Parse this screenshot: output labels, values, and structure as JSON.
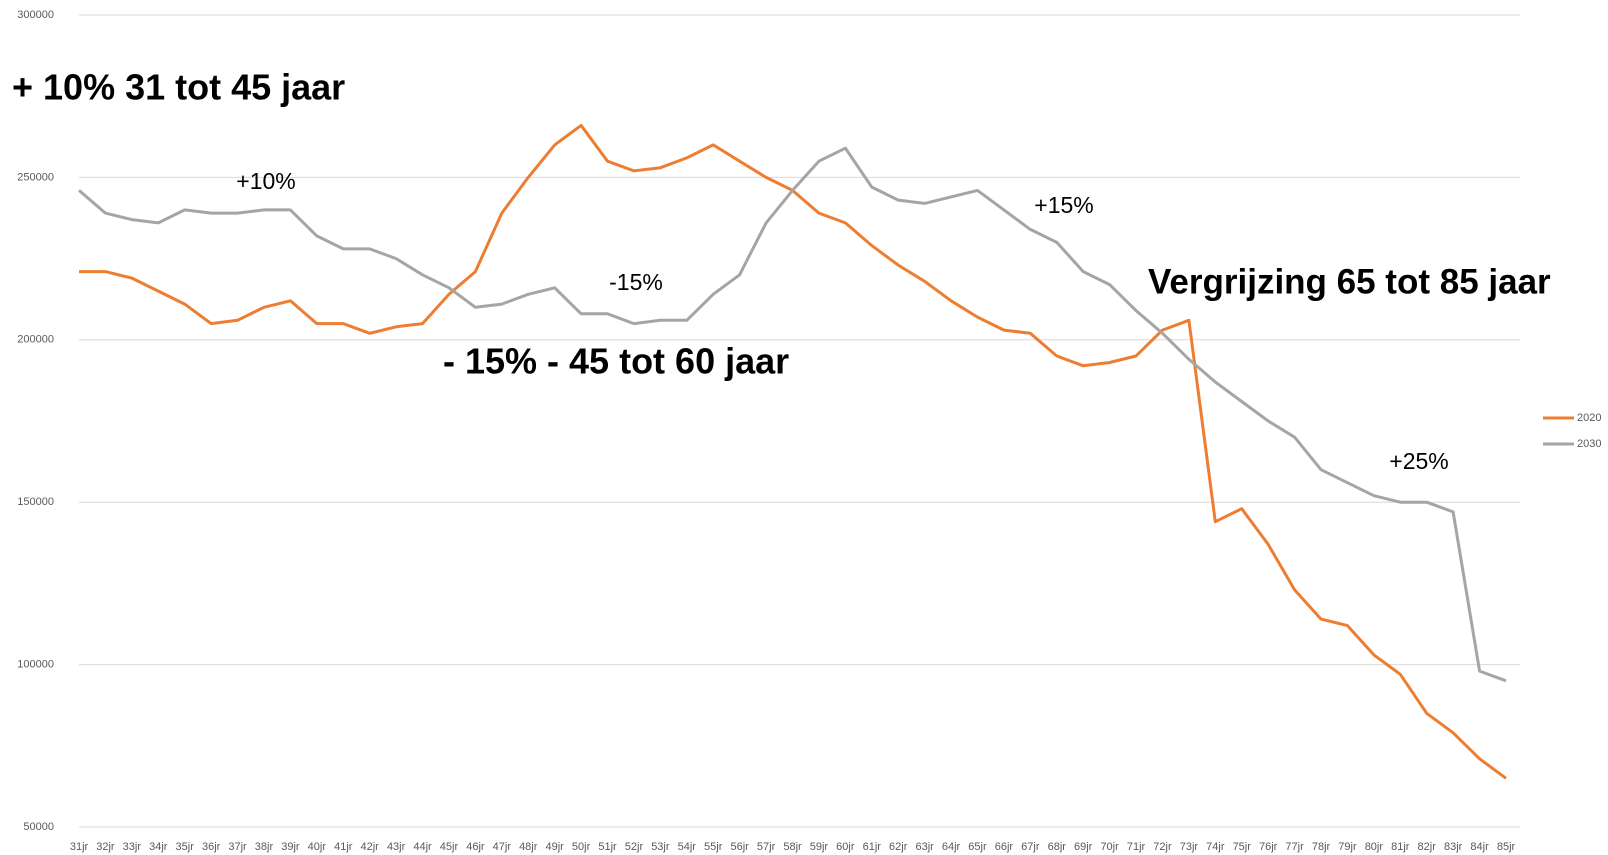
{
  "chart_data": {
    "type": "line",
    "categories": [
      "31jr",
      "32jr",
      "33jr",
      "34jr",
      "35jr",
      "36jr",
      "37jr",
      "38jr",
      "39jr",
      "40jr",
      "41jr",
      "42jr",
      "43jr",
      "44jr",
      "45jr",
      "46jr",
      "47jr",
      "48jr",
      "49jr",
      "50jr",
      "51jr",
      "52jr",
      "53jr",
      "54jr",
      "55jr",
      "56jr",
      "57jr",
      "58jr",
      "59jr",
      "60jr",
      "61jr",
      "62jr",
      "63jr",
      "64jr",
      "65jr",
      "66jr",
      "67jr",
      "68jr",
      "69jr",
      "70jr",
      "71jr",
      "72jr",
      "73jr",
      "74jr",
      "75jr",
      "76jr",
      "77jr",
      "78jr",
      "79jr",
      "80jr",
      "81jr",
      "82jr",
      "83jr",
      "84jr",
      "85jr"
    ],
    "series": [
      {
        "name": "2020",
        "color": "#ed7d31",
        "values": [
          221000,
          221000,
          219000,
          215000,
          211000,
          205000,
          206000,
          210000,
          212000,
          205000,
          205000,
          202000,
          204000,
          205000,
          214000,
          221000,
          239000,
          250000,
          260000,
          266000,
          255000,
          252000,
          253000,
          256000,
          260000,
          255000,
          250000,
          246000,
          239000,
          236000,
          229000,
          223000,
          218000,
          212000,
          207000,
          203000,
          202000,
          195000,
          192000,
          193000,
          195000,
          203000,
          206000,
          144000,
          148000,
          137000,
          123000,
          114000,
          112000,
          103000,
          97000,
          85000,
          79000,
          71000,
          65000
        ]
      },
      {
        "name": "2030",
        "color": "#a5a5a5",
        "values": [
          246000,
          239000,
          237000,
          236000,
          240000,
          239000,
          239000,
          240000,
          240000,
          232000,
          228000,
          228000,
          225000,
          220000,
          216000,
          210000,
          211000,
          214000,
          216000,
          208000,
          208000,
          205000,
          206000,
          206000,
          214000,
          220000,
          236000,
          246000,
          255000,
          259000,
          247000,
          243000,
          242000,
          244000,
          246000,
          240000,
          234000,
          230000,
          221000,
          217000,
          209000,
          202000,
          194000,
          187000,
          181000,
          175000,
          170000,
          160000,
          156000,
          152000,
          150000,
          150000,
          147000,
          98000,
          95000
        ]
      }
    ],
    "ylim": [
      50000,
      300000
    ],
    "yticks": [
      50000,
      100000,
      150000,
      200000,
      250000,
      300000
    ],
    "grid": true,
    "legend": "right",
    "annotations": [
      "+ 10% 31 tot 45 jaar",
      "+10%",
      "-15%",
      "- 15% - 45 tot 60 jaar",
      "+15%",
      "Vergrijzing 65 tot 85 jaar",
      "+25%"
    ]
  }
}
